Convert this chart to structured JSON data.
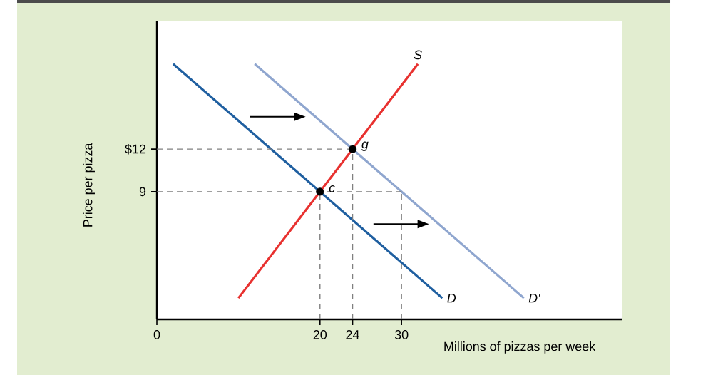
{
  "chart_data": {
    "type": "line",
    "xlabel": "Millions of pizzas per week",
    "ylabel": "Price per pizza",
    "xlim": [
      0,
      57
    ],
    "ylim": [
      0,
      21
    ],
    "xticks": [
      0,
      20,
      24,
      30
    ],
    "yticks": [
      9,
      {
        "value": 12,
        "label": "$12"
      }
    ],
    "legend": false,
    "grid": false,
    "series": [
      {
        "name": "S",
        "color": "#e8312f",
        "x": [
          10,
          32
        ],
        "values": [
          1.5,
          18
        ]
      },
      {
        "name": "D",
        "color": "#1f5fa0",
        "x": [
          2,
          35
        ],
        "values": [
          18,
          1.5
        ]
      },
      {
        "name": "D'",
        "color": "#8fa6cf",
        "x": [
          12,
          45
        ],
        "values": [
          18,
          1.5
        ]
      },
      {
        "color": "#808080",
        "line_style": "dashed",
        "x": [
          0,
          24
        ],
        "values": [
          12,
          12
        ]
      },
      {
        "color": "#808080",
        "line_style": "dashed",
        "x": [
          0,
          30
        ],
        "values": [
          9,
          9
        ]
      },
      {
        "color": "#808080",
        "line_style": "dashed",
        "x": [
          20,
          20
        ],
        "values": [
          0,
          9
        ]
      },
      {
        "color": "#808080",
        "line_style": "dashed",
        "x": [
          24,
          24
        ],
        "values": [
          0,
          12
        ]
      },
      {
        "color": "#808080",
        "line_style": "dashed",
        "x": [
          30,
          30
        ],
        "values": [
          0,
          9
        ]
      },
      {
        "type": "scatter",
        "color": "#000000",
        "x": [
          20,
          24
        ],
        "values": [
          9,
          12
        ]
      }
    ],
    "annotations": [
      {
        "text": "g",
        "x": 24,
        "y": 12
      },
      {
        "text": "c",
        "x": 20,
        "y": 9
      }
    ]
  }
}
